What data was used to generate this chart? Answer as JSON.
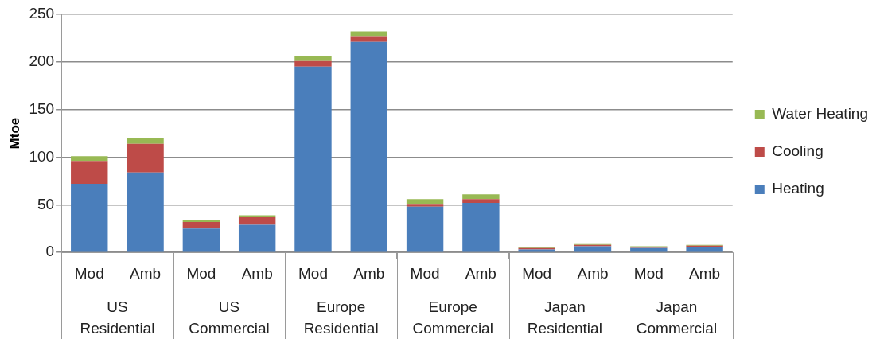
{
  "chart_data": {
    "type": "bar",
    "ylabel": "Mtoe",
    "categories": [
      "Mod",
      "Amb",
      "Mod",
      "Amb",
      "Mod",
      "Amb",
      "Mod",
      "Amb",
      "Mod",
      "Amb",
      "Mod",
      "Amb"
    ],
    "annotations": [
      "US Residential",
      "US Commercial",
      "Europe Residential",
      "Europe Commercial",
      "Japan Residential",
      "Japan Commercial"
    ],
    "stacked": true,
    "ylim": [
      0,
      250
    ],
    "yticks": [
      0,
      50,
      100,
      150,
      200,
      250
    ],
    "grid": "y",
    "legend": "right",
    "series": [
      {
        "name": "Heating",
        "color": "#4a7ebb",
        "values": [
          72,
          84,
          25,
          29,
          195,
          221,
          48,
          52,
          3,
          6.5,
          4.5,
          5.5
        ]
      },
      {
        "name": "Cooling",
        "color": "#be4b48",
        "values": [
          24,
          30,
          7,
          8,
          6,
          6,
          3,
          4,
          1.5,
          1.5,
          0.5,
          1.5
        ]
      },
      {
        "name": "Water Heating",
        "color": "#98b954",
        "values": [
          5,
          6,
          2,
          2,
          5,
          5,
          5,
          5,
          1,
          1.5,
          1.5,
          1
        ]
      }
    ]
  }
}
